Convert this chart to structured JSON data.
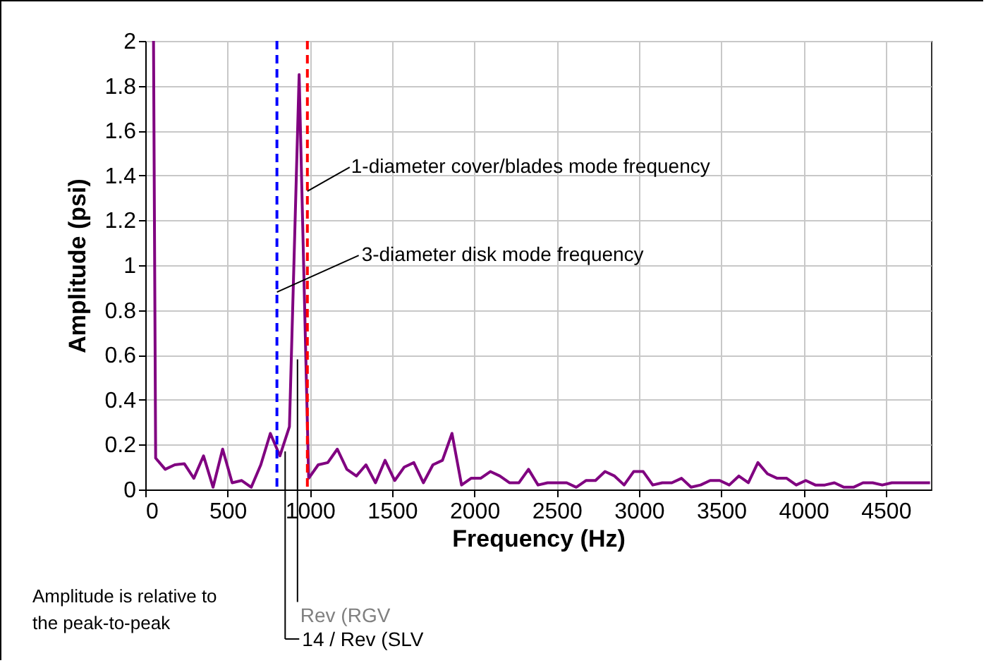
{
  "chart_data": {
    "type": "line",
    "xlabel": "Frequency (Hz)",
    "ylabel": "Amplitude (psi)",
    "xlim": [
      0,
      4775
    ],
    "xticks": [
      0,
      500,
      1000,
      1500,
      2000,
      2500,
      3000,
      3500,
      4000,
      4500
    ],
    "ylim": [
      0,
      2
    ],
    "yticks": [
      0,
      0.2,
      0.4,
      0.6,
      0.8,
      1,
      1.2,
      1.4,
      1.6,
      1.8,
      2
    ],
    "grid": true,
    "marker": "none",
    "line_style": "solid",
    "series": [
      {
        "color": "#800080",
        "x": [
          50,
          63,
          121,
          179,
          237,
          295,
          354,
          412,
          470,
          528,
          586,
          644,
          702,
          760,
          818,
          876,
          935,
          993,
          1051,
          1109,
          1167,
          1225,
          1283,
          1341,
          1399,
          1457,
          1516,
          1574,
          1632,
          1690,
          1748,
          1806,
          1864,
          1922,
          1980,
          2038,
          2097,
          2155,
          2213,
          2271,
          2329,
          2387,
          2445,
          2503,
          2561,
          2619,
          2678,
          2736,
          2794,
          2852,
          2910,
          2968,
          3026,
          3084,
          3142,
          3200,
          3259,
          3317,
          3375,
          3433,
          3491,
          3549,
          3607,
          3665,
          3723,
          3781,
          3840,
          3898,
          3956,
          4014,
          4072,
          4130,
          4188,
          4246,
          4304,
          4362,
          4421,
          4479,
          4537,
          4595,
          4653,
          4711,
          4769
        ],
        "values": [
          2,
          0.14,
          0.09,
          0.11,
          0.115,
          0.05,
          0.15,
          0.01,
          0.18,
          0.03,
          0.04,
          0.01,
          0.11,
          0.25,
          0.15,
          0.28,
          1.85,
          0.05,
          0.11,
          0.12,
          0.18,
          0.09,
          0.06,
          0.11,
          0.03,
          0.13,
          0.04,
          0.1,
          0.12,
          0.03,
          0.11,
          0.13,
          0.25,
          0.02,
          0.05,
          0.05,
          0.08,
          0.06,
          0.03,
          0.03,
          0.09,
          0.02,
          0.03,
          0.03,
          0.03,
          0.01,
          0.04,
          0.04,
          0.08,
          0.06,
          0.02,
          0.08,
          0.08,
          0.02,
          0.03,
          0.03,
          0.05,
          0.01,
          0.02,
          0.04,
          0.04,
          0.02,
          0.06,
          0.03,
          0.12,
          0.07,
          0.05,
          0.05,
          0.02,
          0.04,
          0.02,
          0.02,
          0.03,
          0.01,
          0.01,
          0.03,
          0.03,
          0.02,
          0.03,
          0.03,
          0.03,
          0.03,
          0.03
        ]
      }
    ],
    "ref_lines": [
      {
        "axis": "x",
        "value": 800,
        "color": "#0000ff",
        "line_style": "dashed"
      },
      {
        "axis": "x",
        "value": 985,
        "color": "#ff0000",
        "line_style": "dashed"
      }
    ],
    "annotations": [
      {
        "text": "1-diameter cover/blades mode frequency",
        "x": 985,
        "y": 1.33
      },
      {
        "text": "3-diameter disk mode frequency",
        "x": 800,
        "y": 0.88
      },
      {
        "text": "14 / Rev (SLV",
        "x": 850,
        "y": 0.17
      },
      {
        "text": "Rev (RGV",
        "x": 925,
        "y": 0.58
      },
      "Amplitude is relative to the peak-to-peak"
    ]
  }
}
